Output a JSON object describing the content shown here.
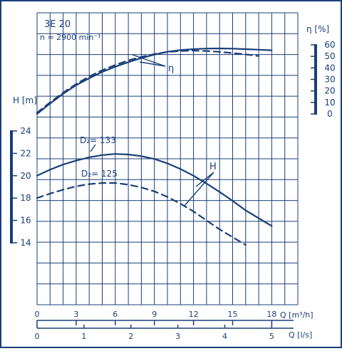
{
  "chart_data": [
    {
      "type": "line",
      "title": "3E 20",
      "subtitle": "n = 2900 min⁻¹",
      "x": {
        "label": "Q [m³/h]",
        "secondary_label": "Q [l/s]",
        "range": [
          0,
          20
        ],
        "ticks": [
          0,
          3,
          6,
          9,
          12,
          15,
          18
        ],
        "tick_labels": [
          "0",
          "3",
          "6",
          "9",
          "12",
          "15",
          "18"
        ],
        "secondary_ticks": [
          0,
          1,
          2,
          3,
          4,
          5
        ],
        "secondary_tick_labels": [
          "0",
          "1",
          "2",
          "3",
          "4",
          "5"
        ]
      },
      "y_left": {
        "label": "H [m]",
        "range": [
          14,
          24
        ],
        "ticks": [
          14,
          16,
          18,
          20,
          22,
          24
        ],
        "tick_labels": [
          "14",
          "16",
          "18",
          "20",
          "22",
          "24"
        ]
      },
      "y_right": {
        "label": "η [%]",
        "range": [
          0,
          60
        ],
        "ticks": [
          0,
          10,
          20,
          30,
          40,
          50,
          60
        ],
        "tick_labels": [
          "0",
          "10",
          "20",
          "30",
          "40",
          "50",
          "60"
        ]
      },
      "grid": true,
      "annotations": [
        {
          "text": "D₂= 133",
          "series": "H D2=133"
        },
        {
          "text": "D₂= 125",
          "series": "H D2=125"
        },
        {
          "text": "H",
          "series": "H"
        },
        {
          "text": "η",
          "series": "η"
        }
      ],
      "series": [
        {
          "name": "H D2=133",
          "axis": "left",
          "style": "solid",
          "x": [
            0,
            1,
            2,
            3,
            4,
            5,
            6,
            7,
            8,
            9,
            10,
            11,
            12,
            13,
            14,
            15,
            16,
            17,
            18
          ],
          "y": [
            20.0,
            20.55,
            21.0,
            21.35,
            21.65,
            21.85,
            21.95,
            21.9,
            21.75,
            21.5,
            21.1,
            20.6,
            20.0,
            19.3,
            18.55,
            17.75,
            16.9,
            16.2,
            15.5
          ]
        },
        {
          "name": "H D2=125",
          "axis": "left",
          "style": "dashed",
          "x": [
            0,
            1,
            2,
            3,
            4,
            5,
            6,
            7,
            8,
            9,
            10,
            11,
            12,
            13,
            14,
            15,
            16
          ],
          "y": [
            18.0,
            18.4,
            18.75,
            19.05,
            19.25,
            19.35,
            19.35,
            19.2,
            18.95,
            18.6,
            18.1,
            17.5,
            16.8,
            16.0,
            15.2,
            14.5,
            13.8
          ]
        },
        {
          "name": "η D2=133",
          "axis": "right",
          "style": "solid",
          "x": [
            0,
            1,
            2,
            3,
            4,
            5,
            6,
            7,
            8,
            9,
            10,
            11,
            12,
            13,
            14,
            15,
            16,
            17,
            18
          ],
          "y": [
            0,
            9,
            17.5,
            25,
            31,
            36.5,
            41,
            45,
            48.5,
            51.5,
            54,
            55.5,
            56.3,
            56.8,
            56.9,
            56.7,
            56.3,
            55.8,
            55.3
          ]
        },
        {
          "name": "η D2=125",
          "axis": "right",
          "style": "dashed",
          "x": [
            0,
            1,
            2,
            3,
            4,
            5,
            6,
            7,
            8,
            9,
            10,
            11,
            12,
            13,
            14,
            15,
            16,
            17
          ],
          "y": [
            1,
            10,
            18.5,
            26,
            32.5,
            38,
            42.5,
            46.5,
            49.5,
            52,
            53.8,
            54.7,
            55,
            54.7,
            53.9,
            52.9,
            51.7,
            50.3
          ]
        }
      ]
    }
  ]
}
